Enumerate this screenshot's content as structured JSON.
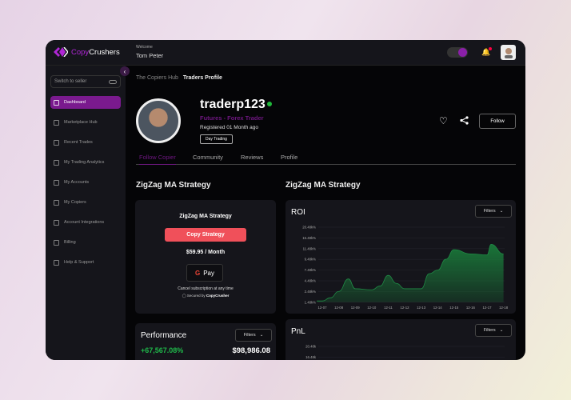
{
  "app": {
    "brand_part1": "Copy",
    "brand_part2": "Crushers",
    "welcome": "Welcome",
    "user": "Tom Peter"
  },
  "sidebar": {
    "switch_label": "Switch to seller",
    "items": [
      {
        "label": "Dashboard",
        "icon": "grid-icon",
        "active": true
      },
      {
        "label": "Marketplace Hub",
        "icon": "store-icon"
      },
      {
        "label": "Recent Trades",
        "icon": "history-icon"
      },
      {
        "label": "My Trading Analytics",
        "icon": "analytics-icon"
      },
      {
        "label": "My Accounts",
        "icon": "accounts-icon"
      },
      {
        "label": "My Copiers",
        "icon": "copy-icon"
      },
      {
        "label": "Account Integrations",
        "icon": "monitor-icon"
      },
      {
        "label": "Billing",
        "icon": "card-icon"
      },
      {
        "label": "Help & Support",
        "icon": "headset-icon"
      }
    ]
  },
  "breadcrumb": {
    "parent": "The Copiers  Hub",
    "current": "Traders Profile"
  },
  "profile": {
    "username": "traderp123",
    "role": "Futures - Forex Trader",
    "registered": "Registered 01 Month ago",
    "tag": "Day Trading",
    "follow_label": "Follow",
    "online_color": "#1fb83a"
  },
  "tabs": [
    "Follow Copier",
    "Community",
    "Reviews",
    "Profile"
  ],
  "strategy": {
    "heading": "ZigZag MA Strategy",
    "card_title": "ZigZag MA Strategy",
    "copy_label": "Copy Strategy",
    "price": "$59.95 / Month",
    "pay_label": "Pay",
    "cancel_note": "Cancel subscription at any time",
    "secured_prefix": "Secured by ",
    "secured_brand": "CopyCrusher",
    "accent": "#f0505a"
  },
  "performance": {
    "title": "Performance",
    "filters": "Filters",
    "gain": "+67,567.08%",
    "amount": "$98,986.08"
  },
  "charts_heading": "ZigZag MA Strategy",
  "chart_data": [
    {
      "type": "area",
      "title": "ROI",
      "filters": "Filters",
      "color": "#1a7a3a",
      "y_ticks": [
        "20.48k%",
        "16.48k%",
        "11.48k%",
        "9.48k%",
        "7.48k%",
        "4.48k%",
        "2.48k%",
        "1.48k%"
      ],
      "y_tick_values": [
        20.48,
        16.48,
        11.48,
        9.48,
        7.48,
        4.48,
        2.48,
        1.48
      ],
      "x_ticks": [
        "12-07",
        "12-08",
        "12-09",
        "12-10",
        "12-11",
        "12-12",
        "12-13",
        "12-14",
        "12-15",
        "12-16",
        "12-17",
        "12-18"
      ],
      "grid": true,
      "points": [
        [
          "12-06 16:00",
          1.6
        ],
        [
          "12-07 00:00",
          1.6
        ],
        [
          "12-07 12:00",
          1.9
        ],
        [
          "12-08 00:00",
          2.5
        ],
        [
          "12-08 14:00",
          5.0
        ],
        [
          "12-09 00:00",
          3.0
        ],
        [
          "12-10 00:00",
          2.8
        ],
        [
          "12-10 12:00",
          3.5
        ],
        [
          "12-11 00:00",
          6.0
        ],
        [
          "12-11 12:00",
          4.0
        ],
        [
          "12-12 00:00",
          3.0
        ],
        [
          "12-13 00:00",
          3.0
        ],
        [
          "12-13 12:00",
          6.5
        ],
        [
          "12-14 00:00",
          7.48
        ],
        [
          "12-14 12:00",
          9.5
        ],
        [
          "12-15 00:00",
          11.3
        ],
        [
          "12-16 00:00",
          10.5
        ],
        [
          "12-17 00:00",
          10.3
        ],
        [
          "12-17 06:00",
          13.5
        ],
        [
          "12-18 00:00",
          10.5
        ]
      ]
    },
    {
      "type": "area",
      "title": "PnL",
      "filters": "Filters",
      "y_ticks": [
        "20.48k",
        "16.48k"
      ],
      "grid": true
    }
  ]
}
